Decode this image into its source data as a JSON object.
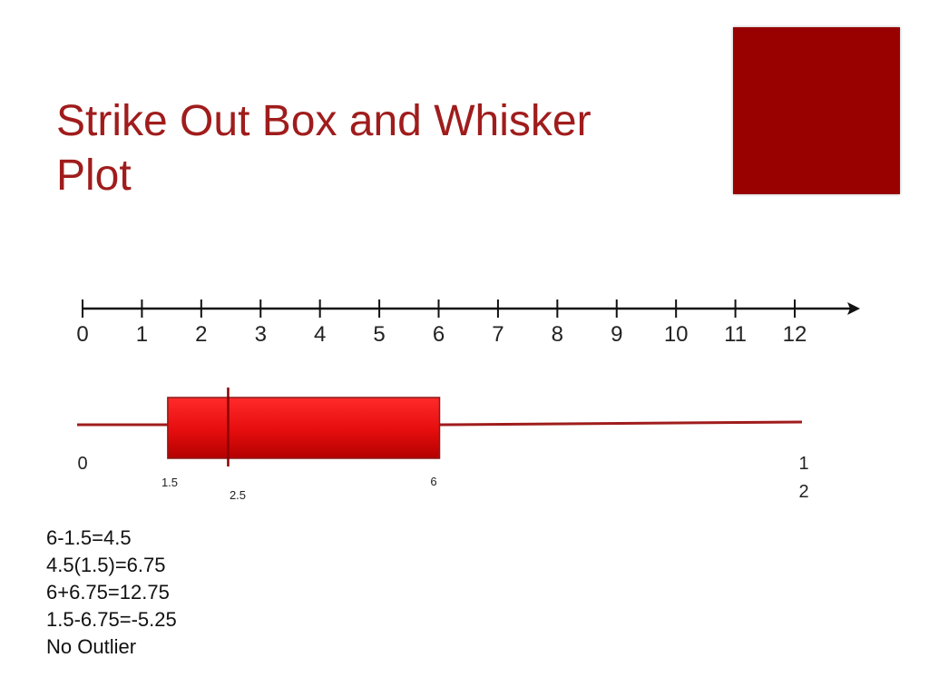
{
  "slide": {
    "title_line1": "Strike Out Box and Whisker",
    "title_line2": "Plot"
  },
  "colors": {
    "title": "#a01c1c",
    "accent": "#990000",
    "box_fill": "#ee1111",
    "box_stroke": "#8b1a1a",
    "whisker": "#a01c1c",
    "axis": "#111111"
  },
  "chart_data": {
    "type": "boxplot",
    "axis": {
      "min": 0,
      "max": 12,
      "ticks": [
        "0",
        "1",
        "2",
        "3",
        "4",
        "5",
        "6",
        "7",
        "8",
        "9",
        "10",
        "11",
        "12"
      ],
      "arrow": "right"
    },
    "box": {
      "min": 0,
      "q1": 1.5,
      "median": 2.5,
      "q3": 6,
      "max": 12
    },
    "labels": {
      "min_label": "0",
      "max_label_line1": "1",
      "max_label_line2": "2",
      "q1_label": "1.5",
      "median_label": "2.5",
      "q3_label": "6"
    }
  },
  "calculations": [
    "6-1.5=4.5",
    "4.5(1.5)=6.75",
    "6+6.75=12.75",
    "1.5-6.75=-5.25",
    "No Outlier"
  ]
}
